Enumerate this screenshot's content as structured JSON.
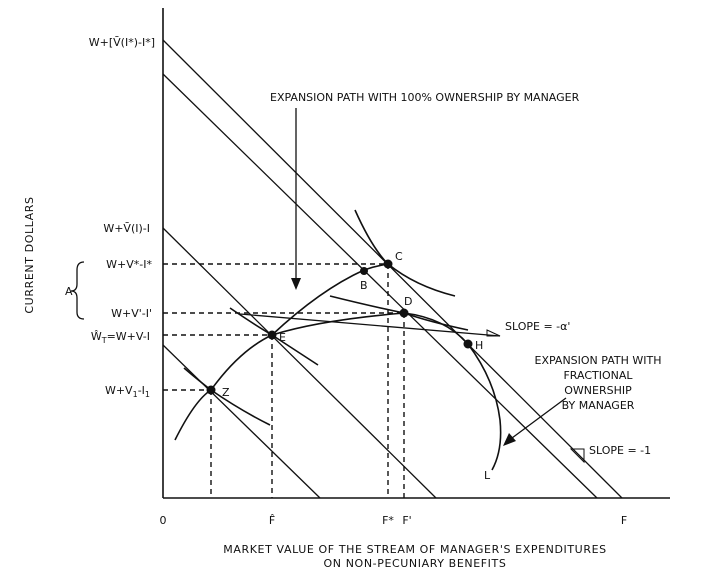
{
  "y_axis": {
    "title": "CURRENT DOLLARS",
    "labels": {
      "top": "W+[V̄(I*)-I*]",
      "wvi": "W+V̄(I)-I",
      "wvstar": "W+V*-I*",
      "wvprime": "W+V'-I'",
      "wt": "Ŵ",
      "wt_sub": "T",
      "wt_rest": "=W+V-I",
      "wv1": "W+V",
      "wv1_sub1": "1",
      "wv1_mid": "-I",
      "wv1_sub2": "1",
      "brace": "A"
    }
  },
  "x_axis": {
    "title_line1": "MARKET VALUE OF THE STREAM OF MANAGER'S EXPENDITURES",
    "title_line2": "ON NON-PECUNIARY BENEFITS",
    "ticks": {
      "zero": "0",
      "fhat": "F̂",
      "fstar": "F*",
      "fprime": "F'",
      "f": "F"
    }
  },
  "points": {
    "c": "C",
    "b": "B",
    "d": "D",
    "e": "E",
    "h": "H",
    "z": "Z",
    "l": "L"
  },
  "annotations": {
    "expansion_full": "EXPANSION PATH WITH 100% OWNERSHIP BY MANAGER",
    "slope_alpha": "SLOPE = -α'",
    "expansion_frac_1": "EXPANSION PATH WITH",
    "expansion_frac_2": "FRACTIONAL",
    "expansion_frac_3": "OWNERSHIP",
    "expansion_frac_4": "BY MANAGER",
    "slope_one": "SLOPE = -1"
  }
}
